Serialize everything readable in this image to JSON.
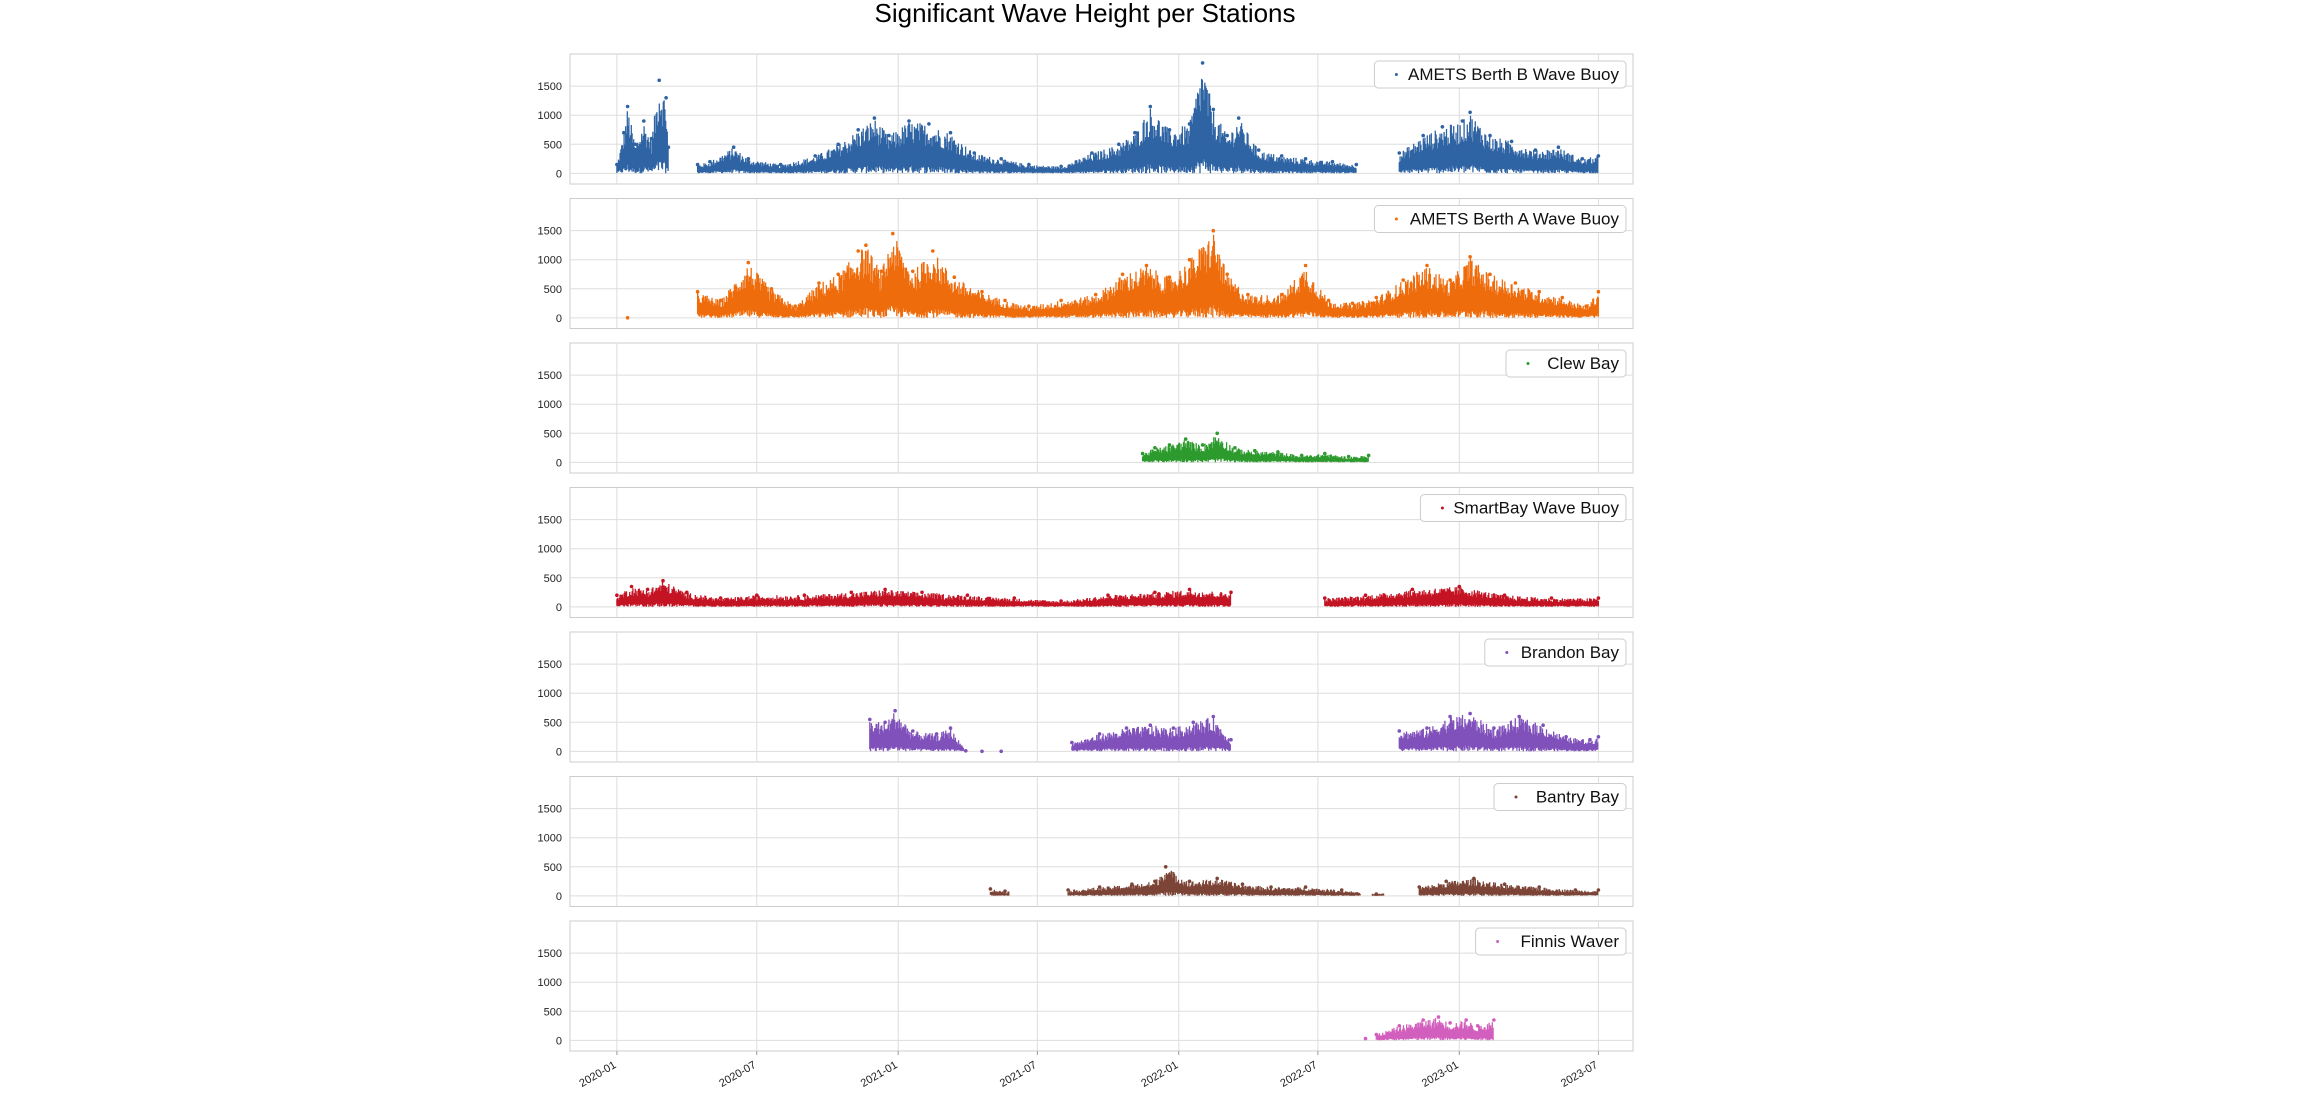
{
  "figure_title": "Significant Wave Height per Stations",
  "chart_data": {
    "type": "scatter",
    "title": "Significant Wave Height per Stations",
    "xlabel": "",
    "ylabel": "",
    "x_ticks": [
      "2020-01",
      "2020-07",
      "2021-01",
      "2021-07",
      "2022-01",
      "2022-07",
      "2023-01",
      "2023-07"
    ],
    "y_ticks": [
      0,
      500,
      1000,
      1500
    ],
    "ylim": [
      -80,
      1950
    ],
    "xlim": [
      "2019-11-01",
      "2023-08-15"
    ],
    "grid": true,
    "legend_position": "top-right",
    "shared_x": true,
    "marker_size": "tiny",
    "series": [
      {
        "name": "AMETS Berth B Wave Buoy",
        "color": "#2e63a4",
        "segments": [
          [
            "2020-01-01",
            "2020-03-08"
          ],
          [
            "2020-04-15",
            "2022-08-20"
          ],
          [
            "2022-10-15",
            "2023-07-01"
          ]
        ],
        "points": [
          [
            "2020-01-01",
            150
          ],
          [
            "2020-01-10",
            700
          ],
          [
            "2020-01-15",
            1150
          ],
          [
            "2020-01-25",
            500
          ],
          [
            "2020-02-05",
            900
          ],
          [
            "2020-02-15",
            600
          ],
          [
            "2020-02-25",
            1600
          ],
          [
            "2020-03-05",
            1300
          ],
          [
            "2020-03-08",
            450
          ],
          [
            "2020-04-15",
            150
          ],
          [
            "2020-05-01",
            200
          ],
          [
            "2020-06-01",
            450
          ],
          [
            "2020-06-20",
            250
          ],
          [
            "2020-08-01",
            150
          ],
          [
            "2020-09-15",
            300
          ],
          [
            "2020-10-15",
            500
          ],
          [
            "2020-11-10",
            750
          ],
          [
            "2020-12-01",
            950
          ],
          [
            "2020-12-20",
            650
          ],
          [
            "2021-01-15",
            900
          ],
          [
            "2021-02-10",
            850
          ],
          [
            "2021-03-10",
            700
          ],
          [
            "2021-04-10",
            350
          ],
          [
            "2021-05-15",
            250
          ],
          [
            "2021-06-20",
            150
          ],
          [
            "2021-08-01",
            120
          ],
          [
            "2021-09-10",
            350
          ],
          [
            "2021-10-15",
            500
          ],
          [
            "2021-11-05",
            700
          ],
          [
            "2021-11-25",
            1150
          ],
          [
            "2021-12-20",
            750
          ],
          [
            "2022-01-15",
            850
          ],
          [
            "2022-02-01",
            1900
          ],
          [
            "2022-02-15",
            1100
          ],
          [
            "2022-03-05",
            650
          ],
          [
            "2022-03-20",
            950
          ],
          [
            "2022-04-15",
            400
          ],
          [
            "2022-05-15",
            300
          ],
          [
            "2022-06-15",
            250
          ],
          [
            "2022-07-20",
            200
          ],
          [
            "2022-08-20",
            150
          ],
          [
            "2022-10-15",
            350
          ],
          [
            "2022-11-15",
            650
          ],
          [
            "2022-12-10",
            800
          ],
          [
            "2023-01-05",
            900
          ],
          [
            "2023-01-15",
            1050
          ],
          [
            "2023-02-10",
            650
          ],
          [
            "2023-03-10",
            550
          ],
          [
            "2023-04-10",
            400
          ],
          [
            "2023-05-10",
            450
          ],
          [
            "2023-06-10",
            250
          ],
          [
            "2023-07-01",
            300
          ]
        ]
      },
      {
        "name": "AMETS Berth A Wave Buoy",
        "color": "#ef6c0c",
        "segments": [
          [
            "2020-04-15",
            "2023-07-01"
          ]
        ],
        "points": [
          [
            "2020-01-15",
            0
          ],
          [
            "2020-04-15",
            450
          ],
          [
            "2020-05-15",
            300
          ],
          [
            "2020-06-20",
            950
          ],
          [
            "2020-07-20",
            500
          ],
          [
            "2020-08-20",
            200
          ],
          [
            "2020-09-20",
            600
          ],
          [
            "2020-10-15",
            750
          ],
          [
            "2020-11-10",
            1150
          ],
          [
            "2020-11-20",
            1250
          ],
          [
            "2020-12-10",
            800
          ],
          [
            "2020-12-25",
            1450
          ],
          [
            "2021-01-20",
            800
          ],
          [
            "2021-02-15",
            1150
          ],
          [
            "2021-03-15",
            700
          ],
          [
            "2021-04-20",
            450
          ],
          [
            "2021-05-20",
            300
          ],
          [
            "2021-06-20",
            200
          ],
          [
            "2021-08-01",
            300
          ],
          [
            "2021-09-15",
            400
          ],
          [
            "2021-10-20",
            750
          ],
          [
            "2021-11-20",
            900
          ],
          [
            "2021-12-20",
            700
          ],
          [
            "2022-01-15",
            1000
          ],
          [
            "2022-02-15",
            1500
          ],
          [
            "2022-03-05",
            750
          ],
          [
            "2022-04-01",
            400
          ],
          [
            "2022-05-15",
            400
          ],
          [
            "2022-06-15",
            900
          ],
          [
            "2022-07-15",
            300
          ],
          [
            "2022-08-15",
            250
          ],
          [
            "2022-09-15",
            350
          ],
          [
            "2022-10-20",
            650
          ],
          [
            "2022-11-20",
            900
          ],
          [
            "2022-12-20",
            650
          ],
          [
            "2023-01-15",
            1050
          ],
          [
            "2023-02-10",
            750
          ],
          [
            "2023-03-15",
            600
          ],
          [
            "2023-04-15",
            450
          ],
          [
            "2023-05-15",
            350
          ],
          [
            "2023-06-15",
            200
          ],
          [
            "2023-07-01",
            450
          ]
        ]
      },
      {
        "name": "Clew Bay",
        "color": "#2d9a2d",
        "segments": [
          [
            "2021-11-15",
            "2022-09-05"
          ]
        ],
        "points": [
          [
            "2021-11-15",
            150
          ],
          [
            "2021-12-01",
            250
          ],
          [
            "2021-12-20",
            300
          ],
          [
            "2022-01-10",
            400
          ],
          [
            "2022-02-01",
            300
          ],
          [
            "2022-02-20",
            500
          ],
          [
            "2022-03-15",
            250
          ],
          [
            "2022-04-10",
            200
          ],
          [
            "2022-05-10",
            180
          ],
          [
            "2022-06-10",
            120
          ],
          [
            "2022-07-10",
            150
          ],
          [
            "2022-08-10",
            100
          ],
          [
            "2022-09-05",
            120
          ]
        ]
      },
      {
        "name": "SmartBay Wave Buoy",
        "color": "#c41423",
        "segments": [
          [
            "2020-01-01",
            "2022-03-10"
          ],
          [
            "2022-07-10",
            "2023-07-01"
          ]
        ],
        "points": [
          [
            "2020-01-01",
            200
          ],
          [
            "2020-01-20",
            350
          ],
          [
            "2020-02-10",
            300
          ],
          [
            "2020-03-01",
            450
          ],
          [
            "2020-04-01",
            250
          ],
          [
            "2020-05-15",
            150
          ],
          [
            "2020-07-01",
            200
          ],
          [
            "2020-09-01",
            200
          ],
          [
            "2020-11-01",
            250
          ],
          [
            "2020-12-15",
            300
          ],
          [
            "2021-02-01",
            250
          ],
          [
            "2021-04-01",
            200
          ],
          [
            "2021-06-01",
            150
          ],
          [
            "2021-08-01",
            100
          ],
          [
            "2021-10-01",
            200
          ],
          [
            "2021-12-01",
            250
          ],
          [
            "2022-01-15",
            300
          ],
          [
            "2022-03-10",
            250
          ],
          [
            "2022-07-10",
            150
          ],
          [
            "2022-09-01",
            200
          ],
          [
            "2022-11-01",
            300
          ],
          [
            "2023-01-01",
            350
          ],
          [
            "2023-03-01",
            200
          ],
          [
            "2023-05-01",
            150
          ],
          [
            "2023-07-01",
            150
          ]
        ]
      },
      {
        "name": "Brandon Bay",
        "color": "#8050bb",
        "segments": [
          [
            "2020-11-25",
            "2021-03-30"
          ],
          [
            "2021-08-15",
            "2022-03-10"
          ],
          [
            "2022-10-15",
            "2023-07-01"
          ]
        ],
        "points": [
          [
            "2020-11-25",
            550
          ],
          [
            "2020-12-15",
            500
          ],
          [
            "2020-12-28",
            700
          ],
          [
            "2021-01-20",
            350
          ],
          [
            "2021-02-20",
            300
          ],
          [
            "2021-03-10",
            400
          ],
          [
            "2021-03-30",
            10
          ],
          [
            "2021-04-20",
            0
          ],
          [
            "2021-05-15",
            0
          ],
          [
            "2021-08-15",
            150
          ],
          [
            "2021-09-20",
            300
          ],
          [
            "2021-10-25",
            400
          ],
          [
            "2021-11-25",
            450
          ],
          [
            "2021-12-25",
            400
          ],
          [
            "2022-01-20",
            500
          ],
          [
            "2022-02-15",
            600
          ],
          [
            "2022-03-10",
            200
          ],
          [
            "2022-10-15",
            350
          ],
          [
            "2022-11-20",
            400
          ],
          [
            "2022-12-20",
            600
          ],
          [
            "2023-01-15",
            650
          ],
          [
            "2023-02-15",
            400
          ],
          [
            "2023-03-20",
            600
          ],
          [
            "2023-04-20",
            450
          ],
          [
            "2023-05-20",
            250
          ],
          [
            "2023-06-20",
            200
          ],
          [
            "2023-07-01",
            250
          ]
        ]
      },
      {
        "name": "Bantry Bay",
        "color": "#7b4436",
        "segments": [
          [
            "2021-05-01",
            "2021-05-25"
          ],
          [
            "2021-08-10",
            "2022-08-25"
          ],
          [
            "2022-09-10",
            "2022-09-25"
          ],
          [
            "2022-11-10",
            "2023-07-01"
          ]
        ],
        "points": [
          [
            "2021-05-01",
            120
          ],
          [
            "2021-05-20",
            80
          ],
          [
            "2021-08-10",
            100
          ],
          [
            "2021-09-20",
            150
          ],
          [
            "2021-11-01",
            200
          ],
          [
            "2021-12-01",
            250
          ],
          [
            "2021-12-15",
            500
          ],
          [
            "2022-01-15",
            250
          ],
          [
            "2022-02-20",
            300
          ],
          [
            "2022-03-25",
            200
          ],
          [
            "2022-05-01",
            150
          ],
          [
            "2022-06-15",
            150
          ],
          [
            "2022-08-01",
            100
          ],
          [
            "2022-09-15",
            30
          ],
          [
            "2022-11-10",
            150
          ],
          [
            "2022-12-15",
            250
          ],
          [
            "2023-01-20",
            300
          ],
          [
            "2023-03-01",
            200
          ],
          [
            "2023-04-15",
            150
          ],
          [
            "2023-06-01",
            100
          ],
          [
            "2023-07-01",
            100
          ]
        ]
      },
      {
        "name": "Finnis Waver",
        "color": "#d25fbd",
        "segments": [
          [
            "2022-09-15",
            "2023-02-15"
          ]
        ],
        "points": [
          [
            "2022-09-01",
            30
          ],
          [
            "2022-09-15",
            100
          ],
          [
            "2022-10-15",
            250
          ],
          [
            "2022-11-15",
            350
          ],
          [
            "2022-12-05",
            400
          ],
          [
            "2022-12-20",
            300
          ],
          [
            "2023-01-10",
            350
          ],
          [
            "2023-01-25",
            250
          ],
          [
            "2023-02-15",
            350
          ]
        ]
      }
    ]
  }
}
